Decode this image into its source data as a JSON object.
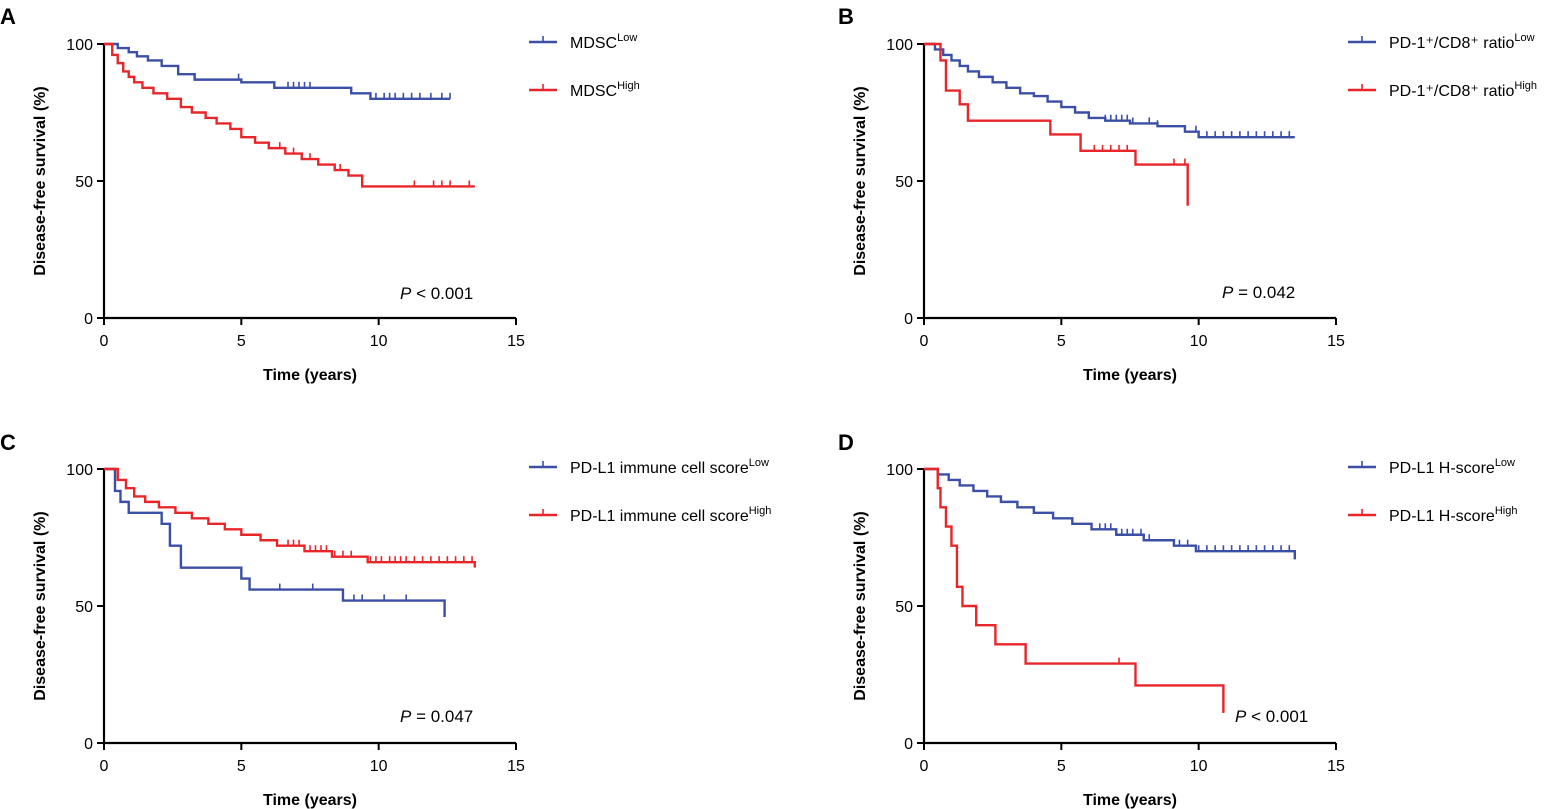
{
  "colors": {
    "low": "#3a4fa5",
    "high": "#e8262a"
  },
  "axes": {
    "xlabel": "Time (years)",
    "ylabel": "Disease-free survival (%)",
    "xticks": [
      "0",
      "5",
      "10",
      "15"
    ],
    "yticks": [
      "0",
      "50",
      "100"
    ],
    "xlim": [
      0,
      15
    ],
    "ylim": [
      0,
      100
    ]
  },
  "chart_data": [
    {
      "panel": "A",
      "type": "line",
      "title": "",
      "xlabel": "Time (years)",
      "ylabel": "Disease-free survival (%)",
      "xlim": [
        0,
        15
      ],
      "ylim": [
        0,
        100
      ],
      "p_value": {
        "italic": "P",
        "rest": " < 0.001"
      },
      "series": [
        {
          "name": "MDSC",
          "sup": "Low",
          "color": "#3a4fa5",
          "x": [
            0,
            0.5,
            0.9,
            1.2,
            1.6,
            2.1,
            2.7,
            3.3,
            5.0,
            6.2,
            9.0,
            9.7,
            12.6
          ],
          "y": [
            100,
            98.5,
            97,
            95.5,
            94,
            92,
            89,
            87,
            86,
            84,
            82,
            80,
            80
          ],
          "censor_x": [
            4.9,
            6.7,
            6.9,
            7.1,
            7.3,
            7.5,
            9.9,
            10.2,
            10.4,
            10.6,
            10.9,
            11.2,
            11.5,
            11.9,
            12.3,
            12.6
          ]
        },
        {
          "name": "MDSC",
          "sup": "High",
          "color": "#e8262a",
          "x": [
            0,
            0.3,
            0.5,
            0.7,
            0.9,
            1.1,
            1.4,
            1.8,
            2.3,
            2.8,
            3.2,
            3.7,
            4.1,
            4.6,
            5.0,
            5.5,
            6.0,
            6.6,
            7.2,
            7.8,
            8.4,
            8.9,
            9.4,
            13.5
          ],
          "y": [
            100,
            96,
            93,
            90,
            88,
            86,
            84,
            82,
            80,
            77,
            75,
            73,
            71,
            69,
            66,
            64,
            62,
            60,
            58,
            56,
            54,
            52,
            48,
            48
          ],
          "censor_x": [
            6.4,
            6.9,
            7.2,
            7.5,
            8.4,
            8.6,
            11.3,
            12.0,
            12.3,
            12.6,
            13.3
          ]
        }
      ]
    },
    {
      "panel": "B",
      "type": "line",
      "title": "",
      "xlabel": "Time (years)",
      "ylabel": "Disease-free survival (%)",
      "xlim": [
        0,
        15
      ],
      "ylim": [
        0,
        100
      ],
      "p_value": {
        "italic": "P",
        "rest": " = 0.042"
      },
      "series": [
        {
          "name": "PD-1⁺/CD8⁺ ratio",
          "sup": "Low",
          "color": "#3a4fa5",
          "x": [
            0,
            0.4,
            0.7,
            1.0,
            1.3,
            1.6,
            2.0,
            2.5,
            3.0,
            3.5,
            4.0,
            4.5,
            5.0,
            5.5,
            6.0,
            6.6,
            7.5,
            8.5,
            9.5,
            10.0,
            13.5
          ],
          "y": [
            100,
            98,
            96,
            94,
            92,
            90,
            88,
            86,
            84,
            82,
            81,
            79,
            77,
            75,
            73,
            72,
            71,
            70,
            68,
            66,
            66
          ],
          "censor_x": [
            6.6,
            6.8,
            7.0,
            7.2,
            7.4,
            7.6,
            8.2,
            8.5,
            9.9,
            10.3,
            10.6,
            10.9,
            11.2,
            11.5,
            11.8,
            12.1,
            12.4,
            12.7,
            13.0,
            13.3
          ]
        },
        {
          "name": "PD-1⁺/CD8⁺ ratio",
          "sup": "High",
          "color": "#e8262a",
          "x": [
            0,
            0.6,
            0.8,
            1.3,
            1.6,
            4.6,
            5.7,
            7.7,
            9.6
          ],
          "y": [
            100,
            94,
            83,
            78,
            72,
            67,
            61,
            56,
            41
          ],
          "censor_x": [
            6.2,
            6.5,
            6.8,
            7.1,
            7.4,
            9.1,
            9.5,
            9.6
          ]
        }
      ]
    },
    {
      "panel": "C",
      "type": "line",
      "title": "",
      "xlabel": "Time (years)",
      "ylabel": "Disease-free survival (%)",
      "xlim": [
        0,
        15
      ],
      "ylim": [
        0,
        100
      ],
      "p_value": {
        "italic": "P",
        "rest": " = 0.047"
      },
      "series": [
        {
          "name": "PD-L1 immune cell score",
          "sup": "Low",
          "color": "#3a4fa5",
          "x": [
            0,
            0.4,
            0.6,
            0.9,
            2.1,
            2.4,
            2.8,
            5.0,
            5.3,
            8.7,
            12.4
          ],
          "y": [
            100,
            92,
            88,
            84,
            80,
            72,
            64,
            60,
            56,
            52,
            46
          ],
          "censor_x": [
            6.4,
            7.6,
            9.1,
            9.4,
            10.2,
            11.0,
            12.4
          ]
        },
        {
          "name": "PD-L1 immune cell score",
          "sup": "High",
          "color": "#e8262a",
          "x": [
            0,
            0.5,
            0.8,
            1.1,
            1.5,
            2.0,
            2.6,
            3.2,
            3.8,
            4.4,
            5.0,
            5.7,
            6.3,
            7.3,
            8.3,
            9.6,
            13.5
          ],
          "y": [
            100,
            96,
            93,
            90,
            88,
            86,
            84,
            82,
            80,
            78,
            76,
            74,
            72,
            70,
            68,
            66,
            64
          ],
          "censor_x": [
            6.7,
            6.9,
            7.1,
            7.3,
            7.5,
            7.7,
            7.9,
            8.1,
            8.4,
            8.7,
            9.0,
            9.7,
            9.9,
            10.1,
            10.4,
            10.6,
            10.8,
            11.0,
            11.3,
            11.6,
            11.9,
            12.2,
            12.5,
            12.8,
            13.1,
            13.4
          ]
        }
      ]
    },
    {
      "panel": "D",
      "type": "line",
      "title": "",
      "xlabel": "Time (years)",
      "ylabel": "Disease-free survival (%)",
      "xlim": [
        0,
        15
      ],
      "ylim": [
        0,
        100
      ],
      "p_value": {
        "italic": "P",
        "rest": " < 0.001"
      },
      "series": [
        {
          "name": "PD-L1 H-score",
          "sup": "Low",
          "color": "#3a4fa5",
          "x": [
            0,
            0.5,
            0.9,
            1.3,
            1.8,
            2.3,
            2.8,
            3.4,
            4.0,
            4.7,
            5.4,
            6.1,
            7.0,
            8.0,
            9.1,
            9.9,
            13.5
          ],
          "y": [
            100,
            98,
            96,
            94,
            92,
            90,
            88,
            86,
            84,
            82,
            80,
            78,
            76,
            74,
            72,
            70,
            67
          ],
          "censor_x": [
            6.4,
            6.6,
            6.8,
            7.0,
            7.2,
            7.4,
            7.6,
            7.9,
            8.2,
            9.3,
            9.6,
            10.0,
            10.3,
            10.6,
            10.9,
            11.2,
            11.5,
            11.8,
            12.1,
            12.4,
            12.7,
            13.0,
            13.3
          ]
        },
        {
          "name": "PD-L1 H-score",
          "sup": "High",
          "color": "#e8262a",
          "x": [
            0,
            0.5,
            0.6,
            0.8,
            1.0,
            1.2,
            1.4,
            1.9,
            2.6,
            3.7,
            7.7,
            10.9
          ],
          "y": [
            100,
            93,
            86,
            79,
            72,
            57,
            50,
            43,
            36,
            29,
            21,
            11
          ],
          "censor_x": [
            7.1,
            10.9
          ]
        }
      ]
    }
  ]
}
